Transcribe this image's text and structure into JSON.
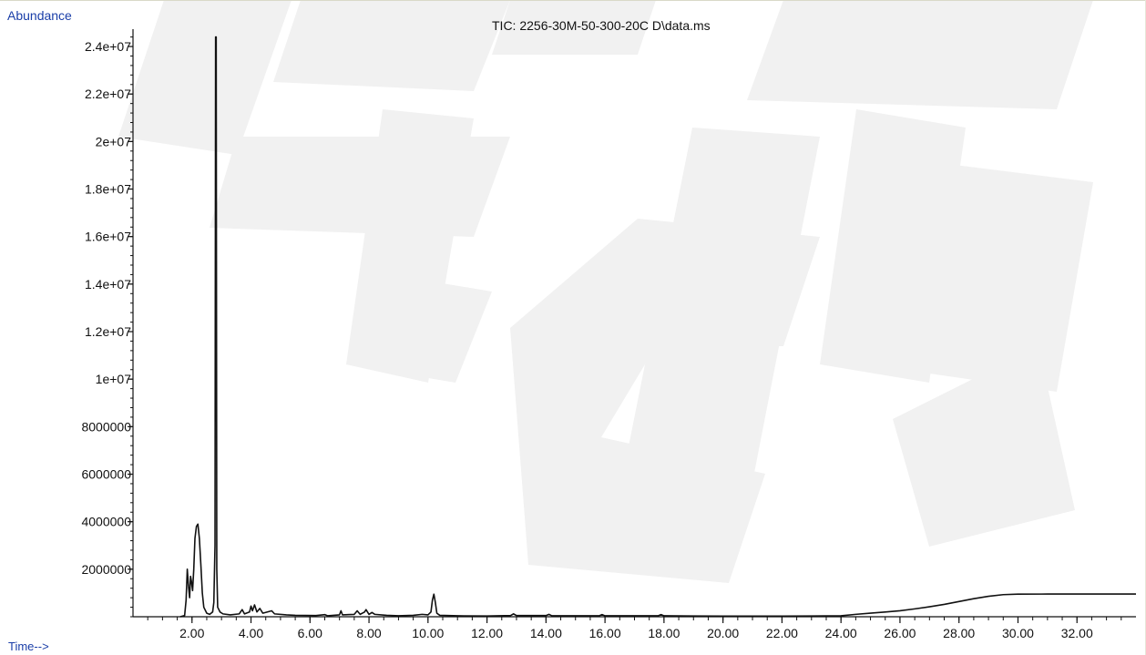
{
  "window": {
    "y_axis_caption": "Abundance",
    "x_axis_caption": "Time-->",
    "title": "TIC: 2256-30M-50-300-20C D\\data.ms"
  },
  "colors": {
    "trace": "#111111",
    "axis": "#111111",
    "caption": "#1a3ea8",
    "watermark": "#f1f1f1"
  },
  "chart_data": {
    "type": "line",
    "title": "TIC: 2256-30M-50-300-20C D\\data.ms",
    "xlabel": "Time-->",
    "ylabel": "Abundance",
    "xlim": [
      0.0,
      34.0
    ],
    "ylim": [
      0,
      24500000
    ],
    "grid": false,
    "x_ticks": [
      2,
      4,
      6,
      8,
      10,
      12,
      14,
      16,
      18,
      20,
      22,
      24,
      26,
      28,
      30,
      32
    ],
    "x_tick_labels": [
      "2.00",
      "4.00",
      "6.00",
      "8.00",
      "10.00",
      "12.00",
      "14.00",
      "16.00",
      "18.00",
      "20.00",
      "22.00",
      "24.00",
      "26.00",
      "28.00",
      "30.00",
      "32.00"
    ],
    "y_ticks": [
      2000000,
      4000000,
      6000000,
      8000000,
      10000000,
      12000000,
      14000000,
      16000000,
      18000000,
      20000000,
      22000000,
      24000000
    ],
    "y_tick_labels": [
      "2000000",
      "4000000",
      "6000000",
      "8000000",
      "1e+07",
      "1.2e+07",
      "1.4e+07",
      "1.6e+07",
      "1.8e+07",
      "2e+07",
      "2.2e+07",
      "2.4e+07"
    ],
    "series": [
      {
        "points": [
          [
            1.6,
            0
          ],
          [
            1.75,
            50000
          ],
          [
            1.8,
            700000
          ],
          [
            1.84,
            2000000
          ],
          [
            1.88,
            1300000
          ],
          [
            1.92,
            800000
          ],
          [
            1.95,
            1700000
          ],
          [
            1.98,
            1500000
          ],
          [
            2.02,
            1100000
          ],
          [
            2.06,
            2000000
          ],
          [
            2.1,
            3300000
          ],
          [
            2.15,
            3800000
          ],
          [
            2.2,
            3900000
          ],
          [
            2.25,
            3300000
          ],
          [
            2.3,
            2200000
          ],
          [
            2.35,
            1000000
          ],
          [
            2.4,
            400000
          ],
          [
            2.5,
            150000
          ],
          [
            2.6,
            100000
          ],
          [
            2.7,
            200000
          ],
          [
            2.74,
            600000
          ],
          [
            2.78,
            3000000
          ],
          [
            2.8,
            24400000
          ],
          [
            2.82,
            24400000
          ],
          [
            2.84,
            2000000
          ],
          [
            2.87,
            400000
          ],
          [
            2.95,
            200000
          ],
          [
            3.05,
            120000
          ],
          [
            3.3,
            80000
          ],
          [
            3.6,
            120000
          ],
          [
            3.7,
            300000
          ],
          [
            3.78,
            120000
          ],
          [
            3.95,
            200000
          ],
          [
            4.0,
            450000
          ],
          [
            4.05,
            250000
          ],
          [
            4.12,
            500000
          ],
          [
            4.2,
            200000
          ],
          [
            4.3,
            350000
          ],
          [
            4.4,
            150000
          ],
          [
            4.7,
            250000
          ],
          [
            4.8,
            120000
          ],
          [
            5.2,
            80000
          ],
          [
            5.5,
            60000
          ],
          [
            6.2,
            50000
          ],
          [
            6.5,
            90000
          ],
          [
            6.6,
            40000
          ],
          [
            7.0,
            80000
          ],
          [
            7.05,
            250000
          ],
          [
            7.1,
            80000
          ],
          [
            7.5,
            100000
          ],
          [
            7.6,
            250000
          ],
          [
            7.7,
            100000
          ],
          [
            7.85,
            200000
          ],
          [
            7.9,
            300000
          ],
          [
            8.0,
            100000
          ],
          [
            8.1,
            180000
          ],
          [
            8.2,
            100000
          ],
          [
            8.6,
            60000
          ],
          [
            9.0,
            40000
          ],
          [
            9.5,
            60000
          ],
          [
            9.8,
            100000
          ],
          [
            10.0,
            80000
          ],
          [
            10.1,
            200000
          ],
          [
            10.15,
            700000
          ],
          [
            10.2,
            950000
          ],
          [
            10.25,
            600000
          ],
          [
            10.3,
            150000
          ],
          [
            10.4,
            60000
          ],
          [
            11.0,
            40000
          ],
          [
            12.0,
            30000
          ],
          [
            12.8,
            50000
          ],
          [
            12.9,
            120000
          ],
          [
            13.0,
            50000
          ],
          [
            14.0,
            50000
          ],
          [
            14.1,
            100000
          ],
          [
            14.2,
            40000
          ],
          [
            15.8,
            40000
          ],
          [
            15.9,
            90000
          ],
          [
            16.0,
            40000
          ],
          [
            17.8,
            40000
          ],
          [
            17.9,
            90000
          ],
          [
            18.0,
            40000
          ],
          [
            19.0,
            30000
          ],
          [
            20.0,
            25000
          ],
          [
            22.0,
            25000
          ],
          [
            23.0,
            30000
          ],
          [
            24.0,
            40000
          ],
          [
            24.5,
            100000
          ],
          [
            25.0,
            150000
          ],
          [
            25.5,
            200000
          ],
          [
            26.0,
            250000
          ],
          [
            26.5,
            330000
          ],
          [
            27.0,
            420000
          ],
          [
            27.5,
            520000
          ],
          [
            28.0,
            640000
          ],
          [
            28.5,
            760000
          ],
          [
            29.0,
            860000
          ],
          [
            29.5,
            930000
          ],
          [
            30.0,
            950000
          ],
          [
            31.0,
            955000
          ],
          [
            32.0,
            955000
          ],
          [
            33.0,
            955000
          ],
          [
            34.0,
            955000
          ]
        ]
      }
    ]
  }
}
